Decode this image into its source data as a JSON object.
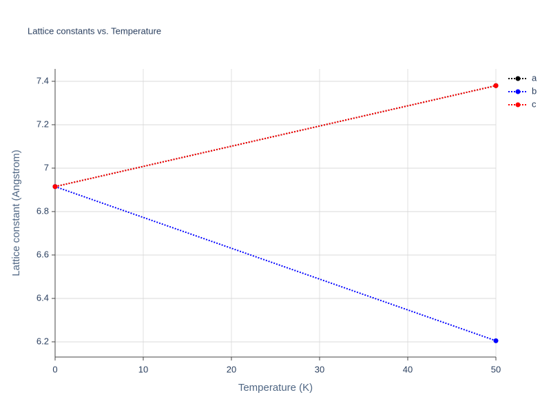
{
  "chart_data": {
    "type": "line",
    "title": "Lattice constants vs. Temperature",
    "x_label": "Temperature (K)",
    "y_label": "Lattice constant (Angstrom)",
    "x": [
      0,
      50
    ],
    "series": [
      {
        "name": "a",
        "color": "#000000",
        "values": [
          6.915,
          7.38
        ]
      },
      {
        "name": "b",
        "color": "#0000ff",
        "values": [
          6.915,
          6.205
        ]
      },
      {
        "name": "c",
        "color": "#ff0000",
        "values": [
          6.915,
          7.38
        ]
      }
    ],
    "xlim": [
      0,
      50
    ],
    "xticks": [
      0,
      10,
      20,
      30,
      40,
      50
    ],
    "ylim": [
      6.13,
      7.457
    ],
    "yticks": [
      6.2,
      6.4,
      6.6,
      6.8,
      7,
      7.2,
      7.4
    ],
    "grid": true,
    "legend": "top-right"
  }
}
